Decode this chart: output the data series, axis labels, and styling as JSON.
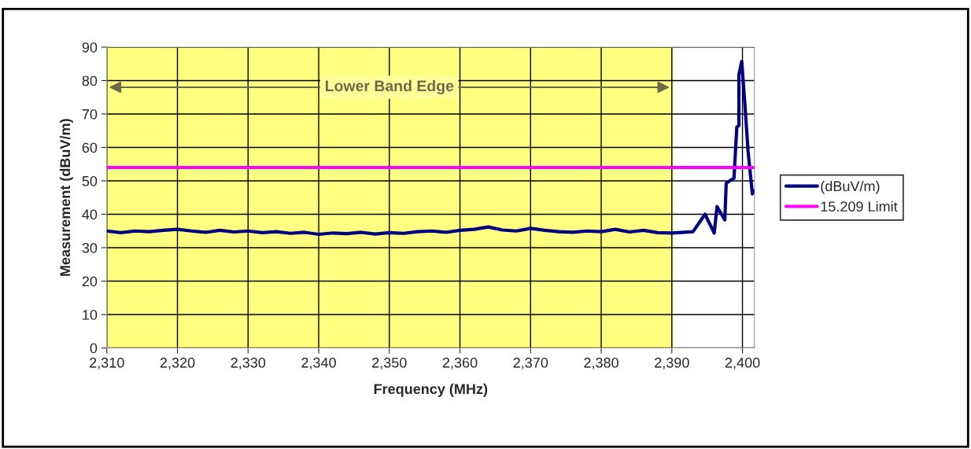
{
  "chart_data": {
    "type": "line",
    "xlabel": "Frequency (MHz)",
    "ylabel": "Measurement (dBuV/m)",
    "xlim": [
      2310,
      2401.7
    ],
    "ylim": [
      0,
      90
    ],
    "xticks": [
      {
        "value": 2310,
        "label": "2,310"
      },
      {
        "value": 2320,
        "label": "2,320"
      },
      {
        "value": 2330,
        "label": "2,330"
      },
      {
        "value": 2340,
        "label": "2,340"
      },
      {
        "value": 2350,
        "label": "2,350"
      },
      {
        "value": 2360,
        "label": "2,360"
      },
      {
        "value": 2370,
        "label": "2,370"
      },
      {
        "value": 2380,
        "label": "2,380"
      },
      {
        "value": 2390,
        "label": "2,390"
      },
      {
        "value": 2400,
        "label": "2,400"
      }
    ],
    "yticks": [
      0,
      10,
      20,
      30,
      40,
      50,
      60,
      70,
      80,
      90
    ],
    "grid": true,
    "legend": "right",
    "bands": [
      {
        "axis": "x",
        "from": 2310,
        "to": 2390,
        "label": "Lower Band Edge",
        "color": "#ffff80"
      }
    ],
    "series": [
      {
        "name": "(dBuV/m)",
        "color": "#000080",
        "x": [
          2310,
          2312,
          2314,
          2316,
          2318,
          2320,
          2322,
          2324,
          2326,
          2328,
          2330,
          2332,
          2334,
          2336,
          2338,
          2340,
          2342,
          2344,
          2346,
          2348,
          2350,
          2352,
          2354,
          2356,
          2358,
          2360,
          2362,
          2364,
          2366,
          2368,
          2370,
          2372,
          2374,
          2376,
          2378,
          2380,
          2382,
          2384,
          2386,
          2388,
          2390,
          2393.0,
          2394.7,
          2396.0,
          2396.4,
          2397.5,
          2397.7,
          2398.8,
          2399.2,
          2399.5,
          2399.5,
          2399.9,
          2400.4,
          2400.8,
          2401.4,
          2401.6
        ],
        "values": [
          35,
          34.5,
          35,
          34.8,
          35.2,
          35.5,
          35,
          34.6,
          35.2,
          34.7,
          35,
          34.5,
          34.8,
          34.3,
          34.6,
          34,
          34.4,
          34.2,
          34.6,
          34.1,
          34.5,
          34.3,
          34.8,
          35,
          34.6,
          35.2,
          35.5,
          36.2,
          35.3,
          35,
          35.8,
          35.2,
          34.8,
          34.6,
          35,
          34.8,
          35.5,
          34.7,
          35.2,
          34.5,
          34.4,
          34.8,
          40,
          34.4,
          42.3,
          38.3,
          49.3,
          50.8,
          66.1,
          66.5,
          81.8,
          85.7,
          71.2,
          58.7,
          46.1,
          47
        ]
      },
      {
        "name": "15.209 Limit",
        "color": "#ff00ff",
        "x": [
          2310,
          2401.7
        ],
        "values": [
          54,
          54
        ]
      }
    ]
  }
}
